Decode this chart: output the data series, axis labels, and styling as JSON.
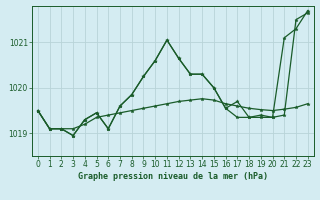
{
  "bg_color": "#d4ecf2",
  "grid_color": "#b8d4d8",
  "line_color": "#1a5c2a",
  "title": "Graphe pression niveau de la mer (hPa)",
  "xlim": [
    -0.5,
    23.5
  ],
  "ylim": [
    1018.5,
    1021.8
  ],
  "yticks": [
    1019,
    1020,
    1021
  ],
  "xticks": [
    0,
    1,
    2,
    3,
    4,
    5,
    6,
    7,
    8,
    9,
    10,
    11,
    12,
    13,
    14,
    15,
    16,
    17,
    18,
    19,
    20,
    21,
    22,
    23
  ],
  "s1": [
    1019.5,
    1019.1,
    1019.1,
    1019.1,
    1019.2,
    1019.35,
    1019.4,
    1019.45,
    1019.5,
    1019.55,
    1019.6,
    1019.65,
    1019.7,
    1019.73,
    1019.76,
    1019.73,
    1019.65,
    1019.6,
    1019.55,
    1019.52,
    1019.5,
    1019.53,
    1019.57,
    1019.65
  ],
  "s2": [
    1019.5,
    1019.1,
    1019.1,
    1018.95,
    1019.3,
    1019.45,
    1019.1,
    1019.6,
    1019.85,
    1020.25,
    1020.6,
    1021.05,
    1020.65,
    1020.3,
    1020.3,
    1020.0,
    1019.55,
    1019.7,
    1019.35,
    1019.4,
    1019.35,
    1019.4,
    1021.5,
    1021.65
  ],
  "s3": [
    1019.5,
    1019.1,
    1019.1,
    1018.95,
    1019.3,
    1019.45,
    1019.1,
    1019.6,
    1019.85,
    1020.25,
    1020.6,
    1021.05,
    1020.65,
    1020.3,
    1020.3,
    1020.0,
    1019.55,
    1019.35,
    1019.35,
    1019.35,
    1019.35,
    1021.1,
    1021.3,
    1021.7
  ]
}
